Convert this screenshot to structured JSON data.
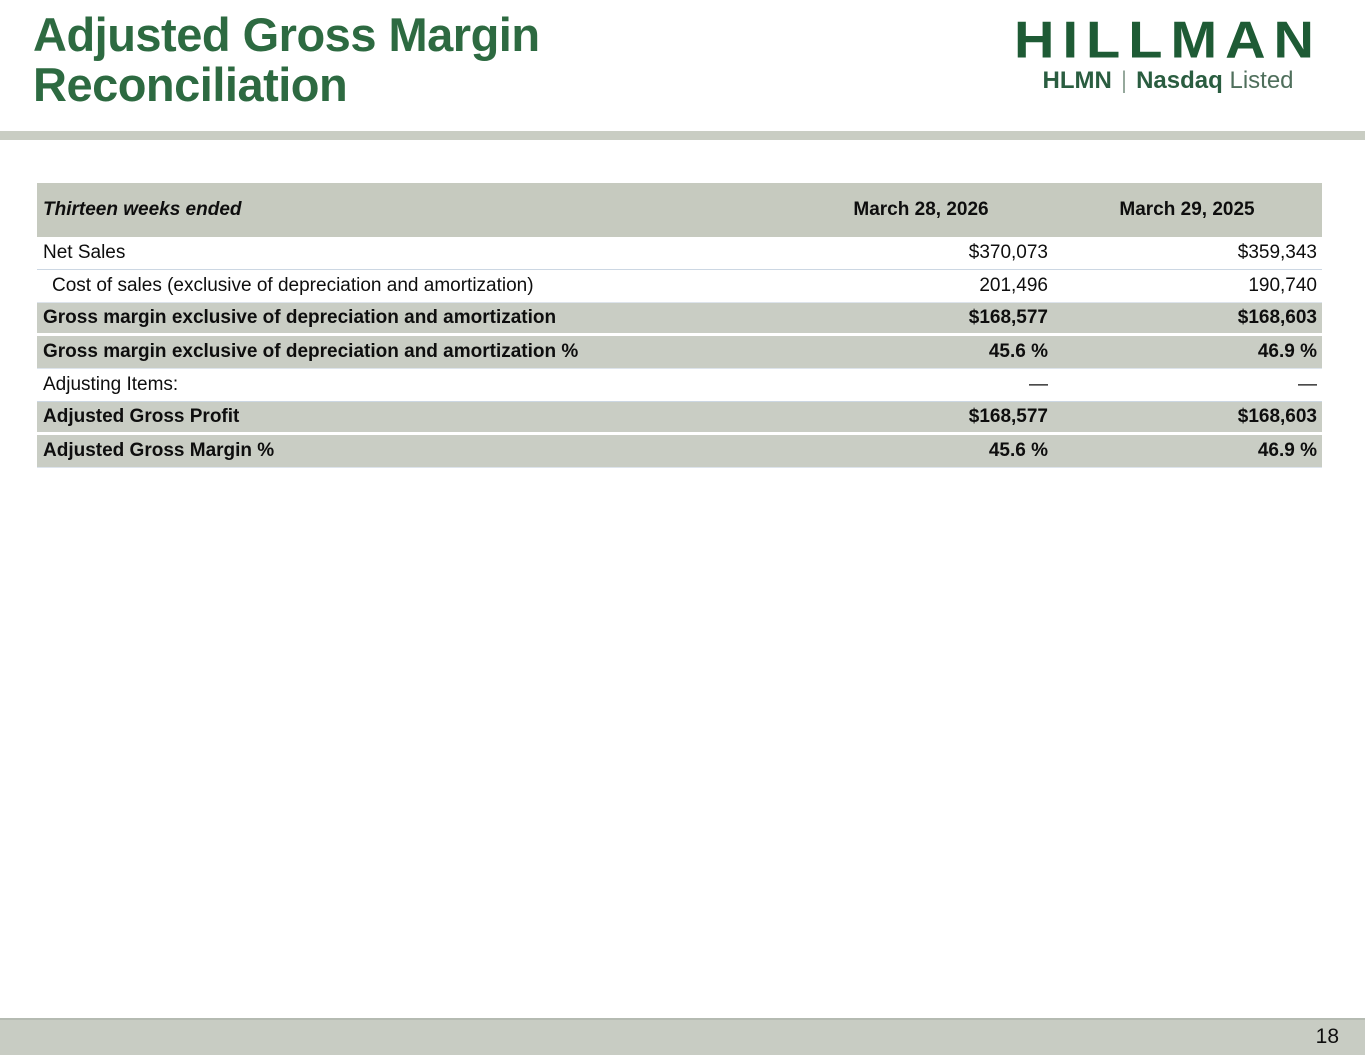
{
  "page": {
    "title_line1": "Adjusted Gross Margin",
    "title_line2": "Reconciliation",
    "page_number": "18"
  },
  "logo": {
    "wordmark": "HILLMAN",
    "ticker": "HLMN",
    "separator": "|",
    "exchange": "Nasdaq",
    "listed": "Listed"
  },
  "colors": {
    "title_green": "#2d6a41",
    "logo_green": "#1e5b35",
    "row_gray": "#c9cdc4",
    "header_gray": "#c6cabf",
    "separator_blue": "#ccd7e3"
  },
  "table": {
    "header": {
      "label": "Thirteen weeks ended",
      "col1": "March 28, 2026",
      "col2": "March 29, 2025"
    },
    "rows": [
      {
        "label": "Net Sales",
        "col1": "$370,073",
        "col2": "$359,343"
      },
      {
        "label": "Cost of sales (exclusive of depreciation and amortization)",
        "col1": "201,496",
        "col2": "190,740"
      },
      {
        "label": "Gross margin exclusive of depreciation and amortization",
        "col1": "$168,577",
        "col2": "$168,603"
      },
      {
        "label": "Gross margin exclusive of depreciation and amortization %",
        "col1": "45.6 %",
        "col2": "46.9 %"
      },
      {
        "label": "Adjusting Items:",
        "col1": "—",
        "col2": "—"
      },
      {
        "label": "Adjusted Gross Profit",
        "col1": "$168,577",
        "col2": "$168,603"
      },
      {
        "label": "Adjusted Gross Margin %",
        "col1": "45.6 %",
        "col2": "46.9 %"
      }
    ]
  }
}
